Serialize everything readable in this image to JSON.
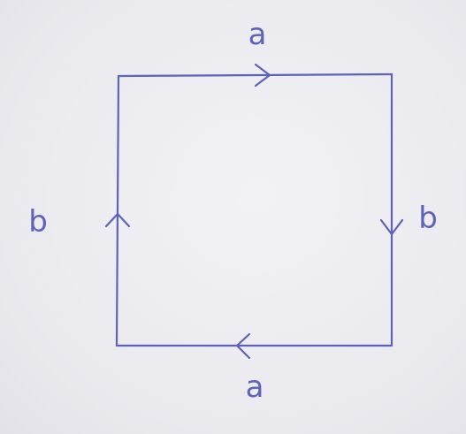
{
  "diagram": {
    "ink_color": "#5d63b6",
    "background_color": "#ececf1",
    "edges": {
      "top": {
        "label": "a",
        "arrow_direction": "right"
      },
      "right": {
        "label": "b",
        "arrow_direction": "down"
      },
      "bottom": {
        "label": "a",
        "arrow_direction": "left"
      },
      "left": {
        "label": "b",
        "arrow_direction": "up"
      }
    }
  }
}
